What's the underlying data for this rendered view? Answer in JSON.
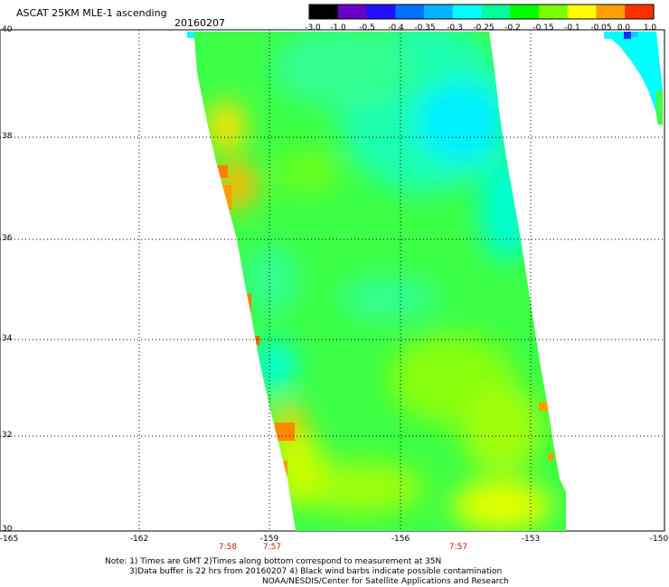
{
  "header": {
    "title": "ASCAT 25KM MLE-1 ascending",
    "date": "20160207"
  },
  "colorbar": {
    "labels": [
      "-3.0",
      "-1.0",
      "-0.5",
      "-0.4",
      "-0.35",
      "-0.3",
      "-0.25",
      "-0.2",
      "-0.15",
      "-0.1",
      "-0.05",
      "0.0",
      "1.0"
    ],
    "colors": [
      "#000000",
      "#6a00c8",
      "#2010ff",
      "#0070ff",
      "#00b4ff",
      "#00ffff",
      "#00ff9a",
      "#00ff00",
      "#78ff00",
      "#ffff00",
      "#ffa000",
      "#ff3000"
    ]
  },
  "axes": {
    "lat_labels": [
      "40",
      "38",
      "36",
      "34",
      "32",
      "30"
    ],
    "lon_labels": [
      "-165",
      "-162",
      "-159",
      "-156",
      "-153",
      "-150"
    ],
    "lat_range": [
      30,
      40
    ],
    "lon_range": [
      -165,
      -150
    ]
  },
  "times": [
    "7:58",
    "7:57",
    "7:57"
  ],
  "notes": {
    "line1": "Note: 1) Times are GMT 2)Times along bottom correspond to measurement at 35N",
    "line2": "3)Data buffer is 22 hrs from 20160207 4) Black wind barbs indicate possible contamination",
    "line3": "NOAA/NESDIS/Center for Satellite Applications and Research"
  }
}
